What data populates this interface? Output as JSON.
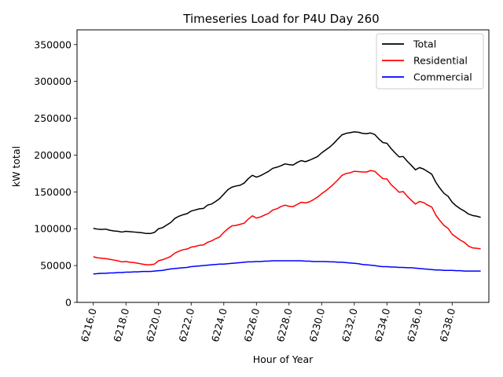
{
  "chart_data": {
    "type": "line",
    "title": "Timeseries Load for P4U   Day 260",
    "xlabel": "Hour of Year",
    "ylabel": "kW total",
    "xlim": [
      6215.0,
      6240.25
    ],
    "ylim": [
      0,
      370000
    ],
    "x_ticks": [
      6216.0,
      6218.0,
      6220.0,
      6222.0,
      6224.0,
      6226.0,
      6228.0,
      6230.0,
      6232.0,
      6234.0,
      6236.0,
      6238.0
    ],
    "x_tick_labels": [
      "6216.0",
      "6218.0",
      "6220.0",
      "6222.0",
      "6224.0",
      "6226.0",
      "6228.0",
      "6230.0",
      "6232.0",
      "6234.0",
      "6236.0",
      "6238.0"
    ],
    "y_ticks": [
      0,
      50000,
      100000,
      150000,
      200000,
      250000,
      300000,
      350000
    ],
    "y_tick_labels": [
      "0",
      "50000",
      "100000",
      "150000",
      "200000",
      "250000",
      "300000",
      "350000"
    ],
    "legend_position": "top-right",
    "grid": false,
    "x": [
      6216.0,
      6216.25,
      6216.5,
      6216.75,
      6217.0,
      6217.25,
      6217.5,
      6217.75,
      6218.0,
      6218.25,
      6218.5,
      6218.75,
      6219.0,
      6219.25,
      6219.5,
      6219.75,
      6220.0,
      6220.25,
      6220.5,
      6220.75,
      6221.0,
      6221.25,
      6221.5,
      6221.75,
      6222.0,
      6222.25,
      6222.5,
      6222.75,
      6223.0,
      6223.25,
      6223.5,
      6223.75,
      6224.0,
      6224.25,
      6224.5,
      6224.75,
      6225.0,
      6225.25,
      6225.5,
      6225.75,
      6226.0,
      6226.25,
      6226.5,
      6226.75,
      6227.0,
      6227.25,
      6227.5,
      6227.75,
      6228.0,
      6228.25,
      6228.5,
      6228.75,
      6229.0,
      6229.25,
      6229.5,
      6229.75,
      6230.0,
      6230.25,
      6230.5,
      6230.75,
      6231.0,
      6231.25,
      6231.5,
      6231.75,
      6232.0,
      6232.25,
      6232.5,
      6232.75,
      6233.0,
      6233.25,
      6233.5,
      6233.75,
      6234.0,
      6234.25,
      6234.5,
      6234.75,
      6235.0,
      6235.25,
      6235.5,
      6235.75,
      6236.0,
      6236.25,
      6236.5,
      6236.75,
      6237.0,
      6237.25,
      6237.5,
      6237.75,
      6238.0,
      6238.25,
      6238.5,
      6238.75,
      6239.0,
      6239.25,
      6239.5,
      6239.75
    ],
    "series": [
      {
        "name": "Total",
        "color": "#000000",
        "values": [
          100500,
          99500,
          99000,
          99500,
          98000,
          97000,
          96500,
          95500,
          96500,
          96000,
          95500,
          95000,
          94500,
          93500,
          93500,
          95000,
          100000,
          101500,
          105000,
          108500,
          114000,
          117000,
          119000,
          120500,
          124000,
          125500,
          127000,
          127500,
          132000,
          133500,
          137000,
          141000,
          147000,
          153000,
          156500,
          158000,
          159000,
          162000,
          168000,
          172500,
          170000,
          172000,
          175000,
          178000,
          182000,
          183500,
          185500,
          188000,
          187000,
          186500,
          190000,
          192500,
          191000,
          193000,
          195500,
          198000,
          203000,
          207000,
          211000,
          216000,
          222000,
          227500,
          229500,
          230500,
          231500,
          231000,
          229500,
          229000,
          230000,
          228000,
          222000,
          217000,
          216000,
          209000,
          203000,
          197500,
          198000,
          191500,
          186000,
          180000,
          183000,
          181000,
          177500,
          174000,
          163000,
          155000,
          148000,
          144000,
          136000,
          131000,
          127000,
          124000,
          120000,
          118000,
          117000,
          115500
        ]
      },
      {
        "name": "Residential",
        "color": "#ff0000",
        "values": [
          62000,
          60500,
          60000,
          59500,
          58500,
          57500,
          56500,
          55000,
          55500,
          54500,
          54000,
          53000,
          52000,
          51000,
          51000,
          52000,
          56500,
          58000,
          60000,
          62500,
          67000,
          69500,
          71500,
          72500,
          75000,
          76000,
          77500,
          78000,
          81500,
          83500,
          86500,
          89000,
          95000,
          100000,
          104000,
          104500,
          106000,
          107500,
          113000,
          117500,
          114500,
          116000,
          118500,
          121000,
          125500,
          127000,
          130000,
          132000,
          130500,
          130000,
          133000,
          136000,
          135000,
          136500,
          139500,
          143000,
          147500,
          151500,
          156000,
          161000,
          166500,
          172500,
          175000,
          176000,
          178000,
          177500,
          177000,
          177000,
          179000,
          178000,
          173000,
          168000,
          167500,
          160000,
          155000,
          149500,
          150500,
          144000,
          138500,
          133500,
          137000,
          135500,
          132000,
          129500,
          118500,
          111000,
          104500,
          100500,
          92500,
          88500,
          84500,
          81500,
          76500,
          74000,
          73500,
          72500
        ]
      },
      {
        "name": "Commercial",
        "color": "#0000ff",
        "values": [
          38500,
          39000,
          39500,
          39500,
          40000,
          40000,
          40500,
          40500,
          41000,
          41000,
          41500,
          41500,
          42000,
          42000,
          42000,
          42500,
          43000,
          43500,
          44500,
          45500,
          46000,
          46500,
          47000,
          47500,
          48500,
          49000,
          49500,
          50000,
          50500,
          51000,
          51500,
          52000,
          52000,
          52500,
          53000,
          53500,
          54000,
          54500,
          55000,
          55000,
          55500,
          55500,
          56000,
          56000,
          56500,
          56500,
          56500,
          56500,
          56500,
          56500,
          56500,
          56500,
          56000,
          56000,
          55500,
          55500,
          55500,
          55500,
          55000,
          55000,
          54500,
          54500,
          54000,
          53500,
          53000,
          52500,
          51500,
          51000,
          50500,
          50000,
          49000,
          48500,
          48500,
          48000,
          48000,
          47500,
          47500,
          47000,
          47000,
          46500,
          46000,
          45500,
          45000,
          44500,
          44000,
          44000,
          43500,
          43500,
          43500,
          43000,
          43000,
          42500,
          42500,
          42500,
          42500,
          42500
        ]
      }
    ]
  }
}
